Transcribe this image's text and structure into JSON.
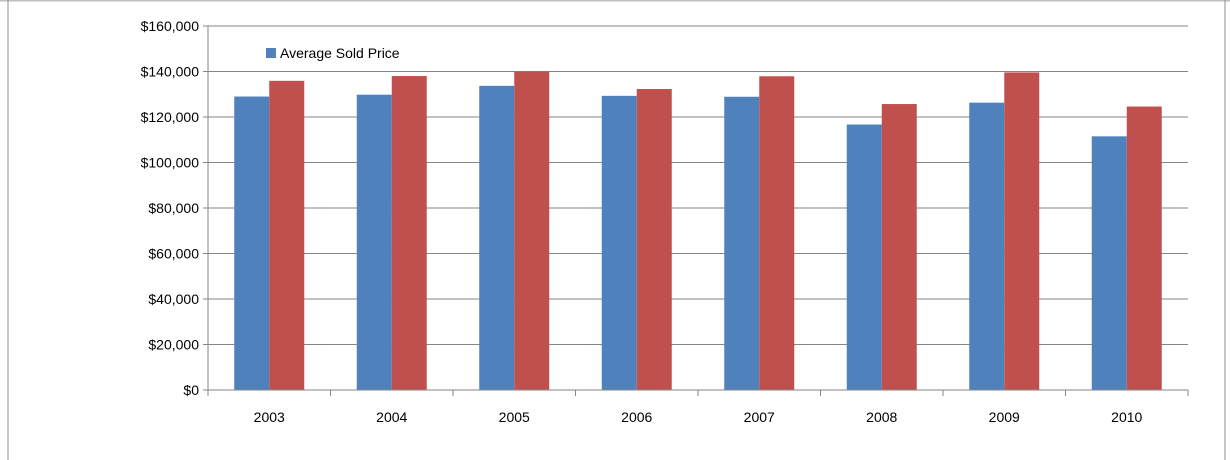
{
  "chart_data": {
    "type": "bar",
    "categories": [
      "2003",
      "2004",
      "2005",
      "2006",
      "2007",
      "2008",
      "2009",
      "2010"
    ],
    "series": [
      {
        "name": "Average Sold Price",
        "color": "#4f81bd",
        "values": [
          129000,
          129800,
          133700,
          129300,
          128900,
          116700,
          126300,
          111500
        ]
      },
      {
        "color": "#c0504d",
        "values": [
          135900,
          138000,
          140000,
          132300,
          137900,
          125700,
          139600,
          124600
        ]
      }
    ],
    "y_tick_labels": [
      "$0",
      "$20,000",
      "$40,000",
      "$60,000",
      "$80,000",
      "$100,000",
      "$120,000",
      "$140,000",
      "$160,000"
    ],
    "ylim": [
      0,
      160000
    ],
    "y_step": 20000,
    "grid": true,
    "legend": {
      "placement": "top-left"
    },
    "title": "",
    "xlabel": "",
    "ylabel": ""
  }
}
